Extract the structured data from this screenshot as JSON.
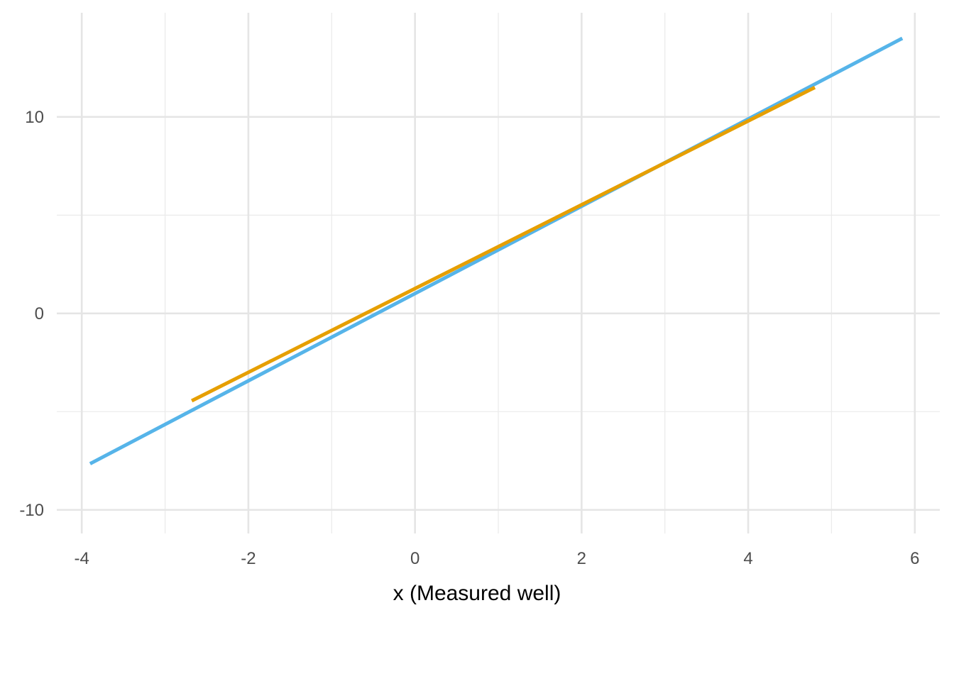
{
  "chart_data": {
    "type": "line",
    "title": "",
    "xlabel": "x (Measured well)",
    "ylabel": "",
    "xlim": [
      -4.3,
      6.3
    ],
    "ylim": [
      -11.2,
      15.3
    ],
    "x_ticks": [
      -4,
      -2,
      0,
      2,
      4,
      6
    ],
    "x_tick_labels": [
      "-4",
      "-2",
      "0",
      "2",
      "4",
      "6"
    ],
    "x_minor_ticks": [
      -3,
      -1,
      1,
      3,
      5
    ],
    "y_ticks": [
      -10,
      0,
      10
    ],
    "y_tick_labels": [
      "-10",
      "0",
      "10"
    ],
    "y_minor_ticks": [
      -5,
      5
    ],
    "grid": true,
    "legend": "none",
    "series": [
      {
        "color": "#56B4E9",
        "x": [
          -3.9,
          5.85
        ],
        "y": [
          -7.65,
          14.0
        ]
      },
      {
        "color": "#E69F00",
        "x": [
          -2.68,
          4.8
        ],
        "y": [
          -4.45,
          11.5
        ]
      }
    ]
  }
}
